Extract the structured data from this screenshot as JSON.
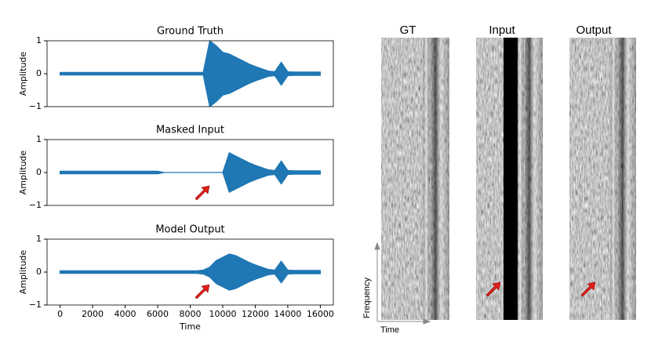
{
  "chart_data": [
    {
      "type": "waveform",
      "title": "Ground Truth",
      "ylabel": "Amplitude",
      "color": "#1f77b4",
      "x": [
        0,
        400,
        800,
        1200,
        1600,
        2000,
        2400,
        2800,
        3200,
        3600,
        4000,
        4400,
        4800,
        5200,
        5600,
        6000,
        6400,
        6800,
        7200,
        7600,
        8000,
        8400,
        8800,
        9200,
        9600,
        10000,
        10400,
        10800,
        11200,
        11600,
        12000,
        12400,
        12800,
        13200,
        13600,
        14000,
        14400,
        14800,
        15200,
        15600,
        16000
      ],
      "values": [
        0.04,
        0.04,
        0.04,
        0.04,
        0.04,
        0.04,
        0.04,
        0.04,
        0.04,
        0.04,
        0.04,
        0.04,
        0.04,
        0.04,
        0.04,
        0.04,
        0.04,
        0.04,
        0.04,
        0.04,
        0.04,
        0.04,
        0.04,
        1.0,
        0.85,
        0.65,
        0.6,
        0.5,
        0.4,
        0.3,
        0.22,
        0.15,
        0.08,
        0.06,
        0.35,
        0.06,
        0.05,
        0.05,
        0.05,
        0.05,
        0.05
      ],
      "xlim": [
        -800,
        16800
      ],
      "ylim": [
        -1,
        1
      ],
      "yticks": [
        {
          "value": -1,
          "label": "−1"
        },
        0,
        1
      ]
    },
    {
      "type": "waveform",
      "title": "Masked Input",
      "ylabel": "Amplitude",
      "color": "#1f77b4",
      "x": [
        0,
        400,
        800,
        1200,
        1600,
        2000,
        2400,
        2800,
        3200,
        3600,
        4000,
        4400,
        4800,
        5200,
        5600,
        6000,
        6400,
        6800,
        7200,
        7600,
        8000,
        8400,
        8800,
        9200,
        9600,
        10000,
        10400,
        10800,
        11200,
        11600,
        12000,
        12400,
        12800,
        13200,
        13600,
        14000,
        14400,
        14800,
        15200,
        15600,
        16000
      ],
      "values": [
        0.04,
        0.04,
        0.04,
        0.04,
        0.04,
        0.04,
        0.04,
        0.04,
        0.04,
        0.04,
        0.04,
        0.04,
        0.04,
        0.04,
        0.04,
        0.04,
        0,
        0,
        0,
        0,
        0,
        0,
        0,
        0,
        0,
        0,
        0.6,
        0.5,
        0.4,
        0.3,
        0.22,
        0.15,
        0.08,
        0.06,
        0.35,
        0.06,
        0.05,
        0.05,
        0.05,
        0.05,
        0.05
      ],
      "xlim": [
        -800,
        16800
      ],
      "ylim": [
        -1,
        1
      ],
      "yticks": [
        {
          "value": -1,
          "label": "−1"
        },
        0,
        1
      ]
    },
    {
      "type": "waveform",
      "title": "Model Output",
      "ylabel": "Amplitude",
      "xlabel": "Time",
      "color": "#1f77b4",
      "x": [
        0,
        400,
        800,
        1200,
        1600,
        2000,
        2400,
        2800,
        3200,
        3600,
        4000,
        4400,
        4800,
        5200,
        5600,
        6000,
        6400,
        6800,
        7200,
        7600,
        8000,
        8400,
        8800,
        9200,
        9600,
        10000,
        10400,
        10800,
        11200,
        11600,
        12000,
        12400,
        12800,
        13200,
        13600,
        14000,
        14400,
        14800,
        15200,
        15600,
        16000
      ],
      "values": [
        0.04,
        0.04,
        0.04,
        0.04,
        0.04,
        0.04,
        0.04,
        0.04,
        0.04,
        0.04,
        0.04,
        0.04,
        0.04,
        0.04,
        0.04,
        0.04,
        0.04,
        0.04,
        0.04,
        0.04,
        0.04,
        0.04,
        0.06,
        0.15,
        0.35,
        0.45,
        0.55,
        0.5,
        0.4,
        0.3,
        0.22,
        0.15,
        0.08,
        0.06,
        0.33,
        0.06,
        0.05,
        0.05,
        0.05,
        0.05,
        0.05
      ],
      "xlim": [
        -800,
        16800
      ],
      "ylim": [
        -1,
        1
      ],
      "yticks": [
        {
          "value": -1,
          "label": "−1"
        },
        0,
        1
      ],
      "xticks": [
        0,
        2000,
        4000,
        6000,
        8000,
        10000,
        12000,
        14000,
        16000
      ]
    }
  ],
  "spectrograms": {
    "titles": [
      "GT",
      "Input",
      "Output"
    ],
    "ylabel": "Frequency",
    "xlabel": "Time"
  }
}
